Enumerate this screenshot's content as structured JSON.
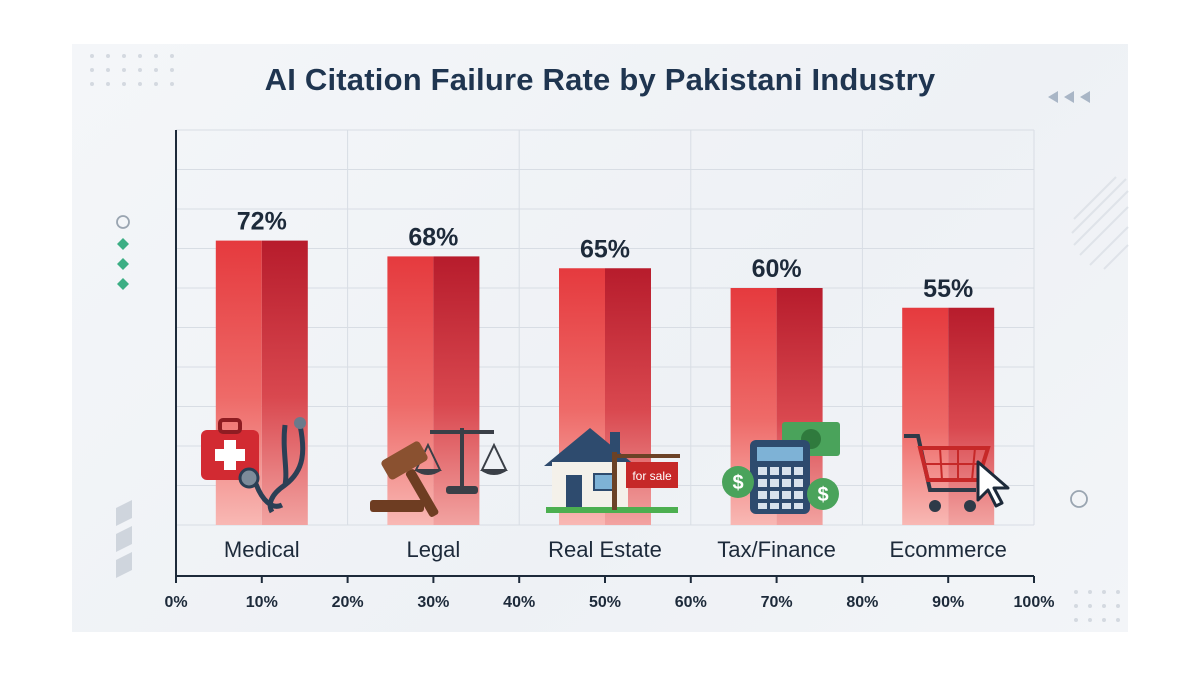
{
  "chart_data": {
    "type": "bar",
    "title": "AI Citation Failure Rate by Pakistani Industry",
    "categories": [
      "Medical",
      "Legal",
      "Real Estate",
      "Tax/Finance",
      "Ecommerce"
    ],
    "values": [
      72,
      68,
      65,
      60,
      55
    ],
    "value_labels": [
      "72%",
      "68%",
      "65%",
      "60%",
      "55%"
    ],
    "x_ticks": [
      "0%",
      "10%",
      "20%",
      "30%",
      "40%",
      "50%",
      "60%",
      "70%",
      "80%",
      "90%",
      "100%"
    ],
    "ylim": [
      0,
      100
    ],
    "grid": true,
    "colors": {
      "bar_light": "#e53a3e",
      "bar_dark": "#b71c2c",
      "bar_fade": "#f7b3b0",
      "title": "#1f3550",
      "axis": "#1d2a3a"
    }
  },
  "icons": [
    "medical-kit-icon",
    "gavel-scales-icon",
    "house-for-sale-icon",
    "calculator-money-icon",
    "shopping-cart-icon"
  ],
  "for_sale_sign": "for sale"
}
